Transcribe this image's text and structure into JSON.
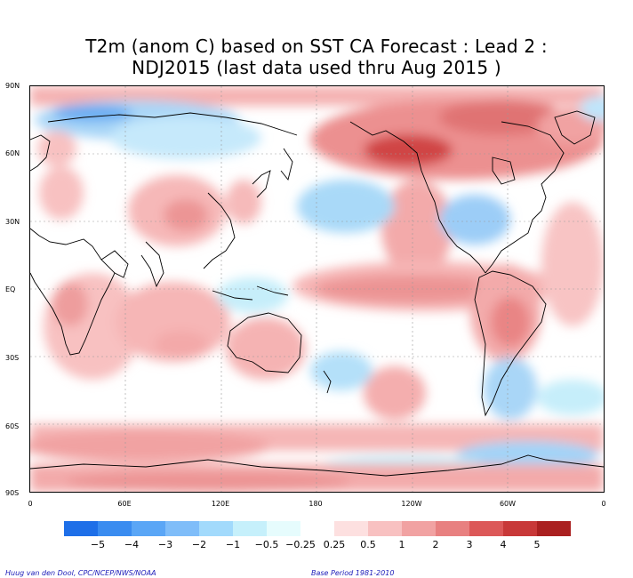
{
  "title": {
    "line1": "T2m (anom C) based on SST CA Forecast : Lead 2 :",
    "line2": "NDJ2015 (last data used thru Aug 2015 )"
  },
  "map": {
    "lat_labels": [
      "90N",
      "60N",
      "30N",
      "EQ",
      "30S",
      "60S",
      "90S"
    ],
    "lon_labels": [
      "0",
      "60E",
      "120E",
      "180",
      "120W",
      "60W",
      "0"
    ]
  },
  "legend": {
    "labels": [
      "−5",
      "−4",
      "−3",
      "−2",
      "−1",
      "−0.5",
      "−0.25",
      "0.25",
      "0.5",
      "1",
      "2",
      "3",
      "4",
      "5"
    ],
    "colors": [
      "#1e6fe8",
      "#3a8cf0",
      "#5aa6f6",
      "#7fbdf9",
      "#a2dafc",
      "#c6f0fb",
      "#e6fcfd",
      "#ffffff",
      "#fde0e0",
      "#f8c1c1",
      "#f1a2a2",
      "#e88080",
      "#dc5858",
      "#c83838",
      "#aa2020"
    ]
  },
  "credits": {
    "left": "Huug van den Dool, CPC/NCEP/NWS/NOAA",
    "right": "Base Period 1981-2010"
  }
}
